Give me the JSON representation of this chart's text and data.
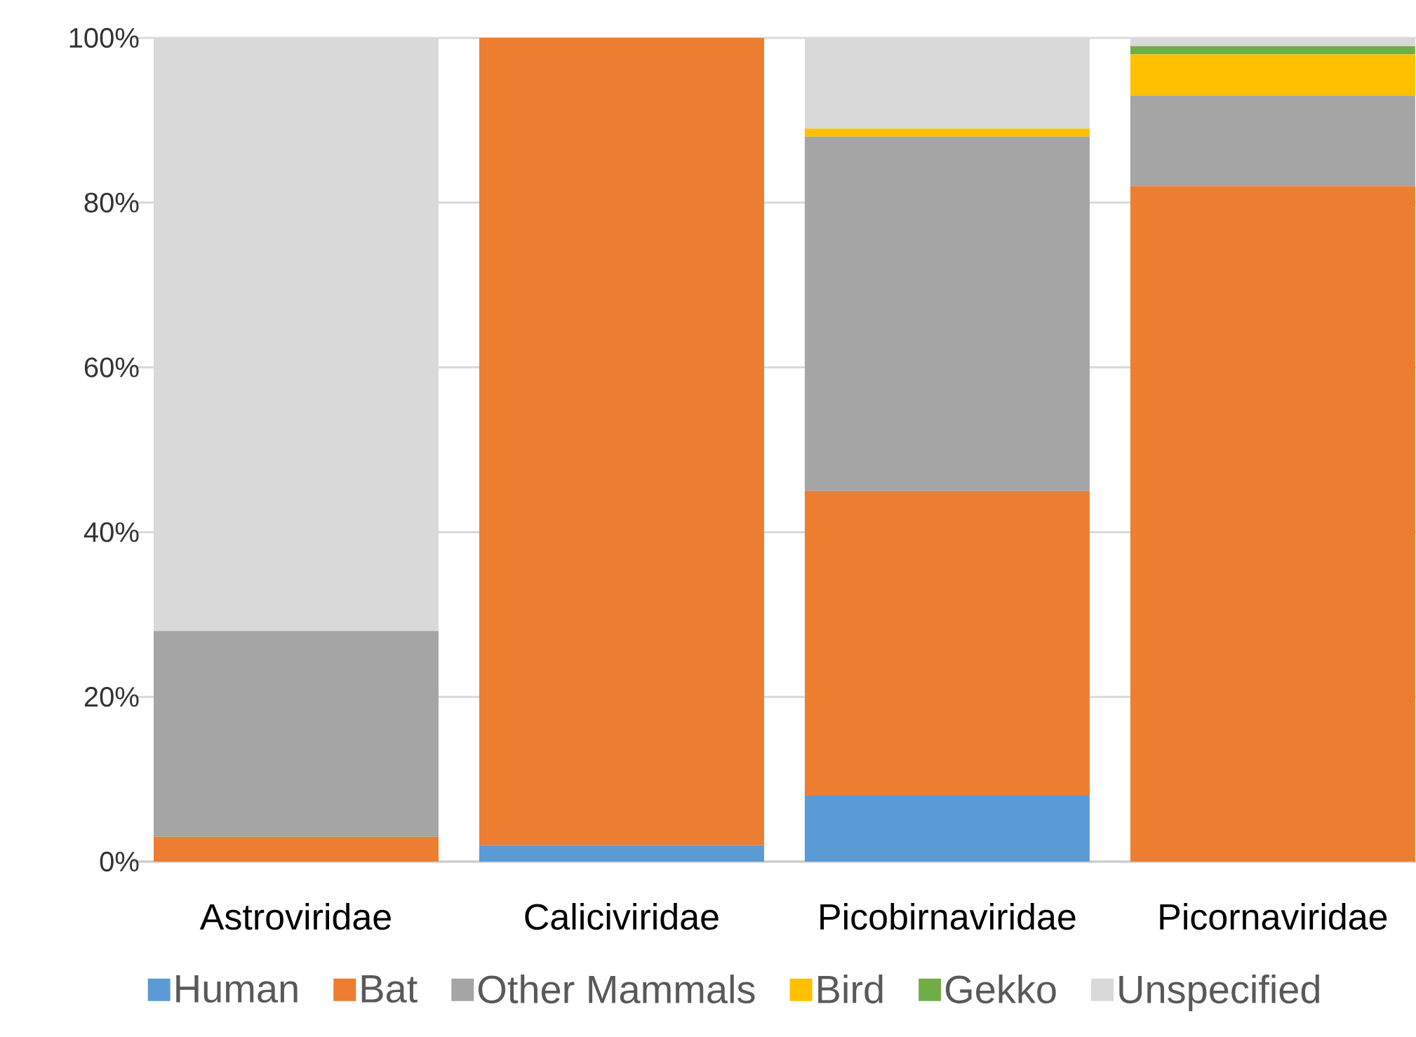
{
  "chart_data": {
    "type": "bar",
    "stacked": true,
    "categories": [
      "Astroviridae",
      "Caliciviridae",
      "Picobirnaviridae",
      "Picornaviridae"
    ],
    "series": [
      {
        "name": "Human",
        "color": "#5b9bd5",
        "values": [
          0,
          2,
          8,
          0
        ]
      },
      {
        "name": "Bat",
        "color": "#ed7d31",
        "values": [
          3,
          98,
          37,
          82
        ]
      },
      {
        "name": "Other Mammals",
        "color": "#a5a5a5",
        "values": [
          25,
          0,
          43,
          11
        ]
      },
      {
        "name": "Bird",
        "color": "#ffc000",
        "values": [
          0,
          0,
          1,
          5
        ]
      },
      {
        "name": "Gekko",
        "color": "#70ad47",
        "values": [
          0,
          0,
          0,
          1
        ]
      },
      {
        "name": "Unspecified",
        "color": "#d9d9d9",
        "values": [
          72,
          0,
          11,
          1
        ]
      }
    ],
    "ylim": [
      0,
      100
    ],
    "yticks": [
      {
        "value": 0,
        "label": "0%"
      },
      {
        "value": 20,
        "label": "20%"
      },
      {
        "value": 40,
        "label": "40%"
      },
      {
        "value": 60,
        "label": "60%"
      },
      {
        "value": 80,
        "label": "80%"
      },
      {
        "value": 100,
        "label": "100%"
      }
    ],
    "grid": "y",
    "legend": "bottom"
  }
}
